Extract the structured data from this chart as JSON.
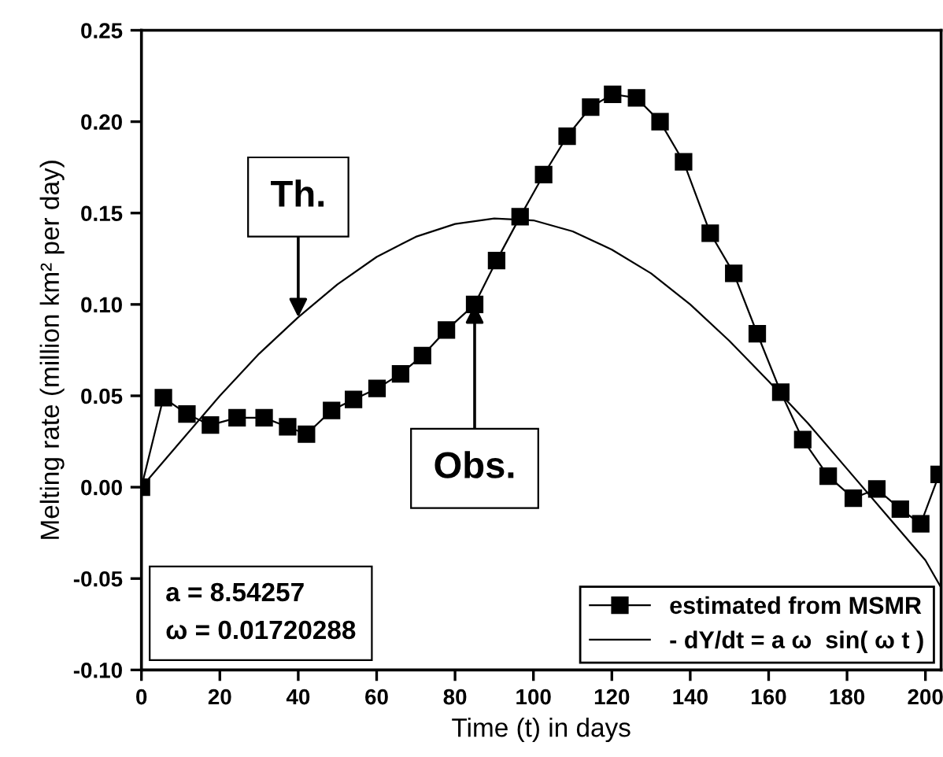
{
  "chart_data": {
    "type": "line",
    "xlabel": "Time (t) in days",
    "ylabel": "Melting rate (million km² per day)",
    "xlim": [
      0,
      204
    ],
    "ylim": [
      -0.1,
      0.25
    ],
    "xticks": [
      0,
      20,
      40,
      60,
      80,
      100,
      120,
      140,
      160,
      180,
      200
    ],
    "yticks": [
      {
        "value": -0.1,
        "label": "-0.10"
      },
      {
        "value": -0.05,
        "label": "-0.05"
      },
      {
        "value": 0,
        "label": "0.00"
      },
      {
        "value": 0.05,
        "label": "0.05"
      },
      {
        "value": 0.1,
        "label": "0.10"
      },
      {
        "value": 0.15,
        "label": "0.15"
      },
      {
        "value": 0.2,
        "label": "0.20"
      },
      {
        "value": 0.25,
        "label": "0.25"
      }
    ],
    "grid": false,
    "legend": "bottom right",
    "series": [
      {
        "name": "estimated from MSMR",
        "color": "#000000",
        "marker": "square",
        "line_style": "solid",
        "x": [
          0,
          5.6,
          11.6,
          17.6,
          24.4,
          31.3,
          37.3,
          42.1,
          48.5,
          54.1,
          60.1,
          66.1,
          71.7,
          77.8,
          85,
          90.6,
          96.6,
          102.6,
          108.6,
          114.6,
          120.2,
          126.3,
          132.3,
          138.3,
          145.1,
          151.1,
          157.1,
          163.1,
          168.7,
          175.2,
          181.6,
          187.6,
          193.6,
          198.8,
          203.5
        ],
        "values": [
          0,
          0.049,
          0.04,
          0.034,
          0.038,
          0.038,
          0.033,
          0.029,
          0.042,
          0.048,
          0.054,
          0.062,
          0.072,
          0.086,
          0.1,
          0.124,
          0.148,
          0.171,
          0.192,
          0.208,
          0.215,
          0.213,
          0.2,
          0.178,
          0.139,
          0.117,
          0.084,
          0.052,
          0.026,
          0.006,
          -0.006,
          -0.001,
          -0.012,
          -0.02,
          0.007
        ]
      },
      {
        "name": "- dY/dt = a ω  sin( ω t )",
        "color": "#000000",
        "marker": "none",
        "line_style": "solid",
        "x": [
          0,
          10,
          20,
          30,
          40,
          50,
          60,
          70,
          80,
          90,
          100,
          110,
          120,
          130,
          140,
          150,
          160,
          170,
          180,
          190,
          200,
          204
        ],
        "values": [
          0,
          0.025,
          0.05,
          0.073,
          0.093,
          0.111,
          0.126,
          0.137,
          0.144,
          0.147,
          0.146,
          0.14,
          0.13,
          0.117,
          0.1,
          0.08,
          0.058,
          0.035,
          0.01,
          -0.015,
          -0.04,
          -0.055
        ]
      }
    ],
    "annotations": [
      {
        "text": "Th.",
        "x": 40,
        "y": 0.093
      },
      {
        "text": "Obs.",
        "x": 85,
        "y": 0.1
      },
      "a = 8.54257",
      "ω = 0.01720288"
    ]
  }
}
